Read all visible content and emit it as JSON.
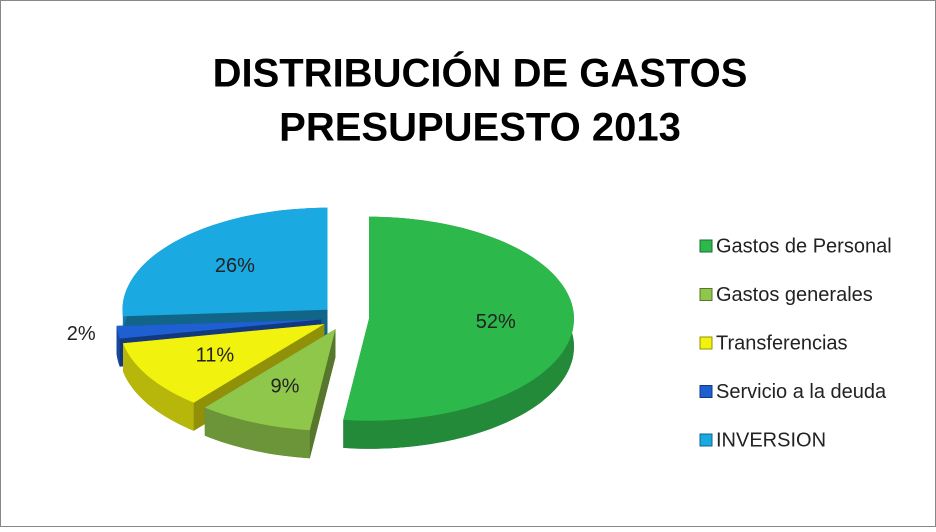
{
  "chart_data": {
    "type": "pie3d",
    "title": "DISTRIBUCIÓN DE GASTOS",
    "subtitle": "PRESUPUESTO 2013",
    "categories": [
      "Gastos de Personal",
      "Gastos generales",
      "Transferencias",
      "Servicio a la deuda",
      "INVERSION"
    ],
    "values": [
      52,
      9,
      11,
      2,
      26
    ],
    "value_labels": [
      "52%",
      "9%",
      "11%",
      "2%",
      "26%"
    ],
    "colors": [
      "#2db84b",
      "#8fc74a",
      "#f2f20f",
      "#1e5fd2",
      "#1ba9e2"
    ],
    "legend": "right"
  }
}
